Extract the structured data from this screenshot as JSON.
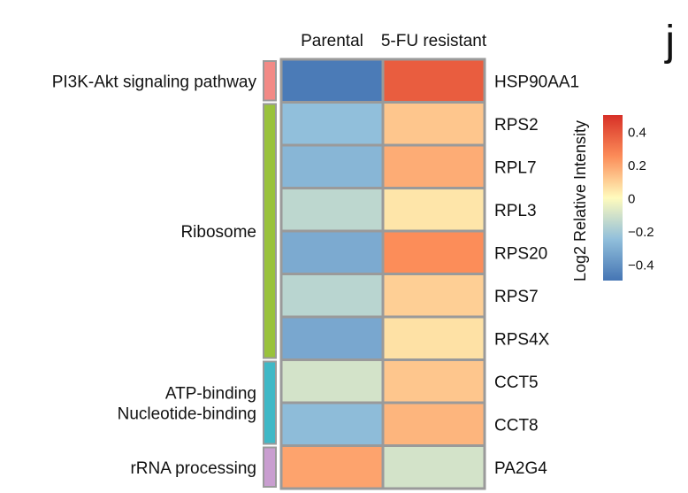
{
  "panel_label": "j",
  "chart_data": {
    "type": "heatmap",
    "columns": [
      "Parental",
      "5-FU resistant"
    ],
    "rows": [
      "HSP90AA1",
      "RPS2",
      "RPL7",
      "RPL3",
      "RPS20",
      "RPS7",
      "RPS4X",
      "CCT5",
      "CCT8",
      "PA2G4"
    ],
    "values": [
      [
        -0.48,
        0.38
      ],
      [
        -0.25,
        0.12
      ],
      [
        -0.28,
        0.18
      ],
      [
        -0.15,
        0.05
      ],
      [
        -0.32,
        0.25
      ],
      [
        -0.16,
        0.1
      ],
      [
        -0.33,
        0.06
      ],
      [
        -0.1,
        0.12
      ],
      [
        -0.26,
        0.16
      ],
      [
        0.2,
        -0.1
      ]
    ],
    "row_groups": [
      {
        "labels": [
          "PI3K-Akt signaling pathway"
        ],
        "color": "#f28a86",
        "rows": [
          0
        ]
      },
      {
        "labels": [
          "Ribosome"
        ],
        "color": "#99c23c",
        "rows": [
          1,
          2,
          3,
          4,
          5,
          6
        ]
      },
      {
        "labels": [
          "ATP-binding",
          "Nucleotide-binding"
        ],
        "color": "#3fb8c6",
        "rows": [
          7,
          8
        ]
      },
      {
        "labels": [
          "rRNA processing"
        ],
        "color": "#c99ed0",
        "rows": [
          9
        ]
      }
    ],
    "legend": {
      "title": "Log2 Relative Intensity",
      "ticks": [
        "0.4",
        "0.2",
        "0",
        "−0.2",
        "−0.4"
      ],
      "tick_values": [
        0.4,
        0.2,
        0,
        -0.2,
        -0.4
      ],
      "range": [
        -0.5,
        0.5
      ],
      "placement": "right"
    },
    "colors": {
      "low": "#4575b4",
      "mid_low": "#91bfdb",
      "mid": "#fffbbd",
      "mid_high": "#fc8d59",
      "high": "#d73027",
      "cell_border": "#9a9a9a"
    }
  }
}
